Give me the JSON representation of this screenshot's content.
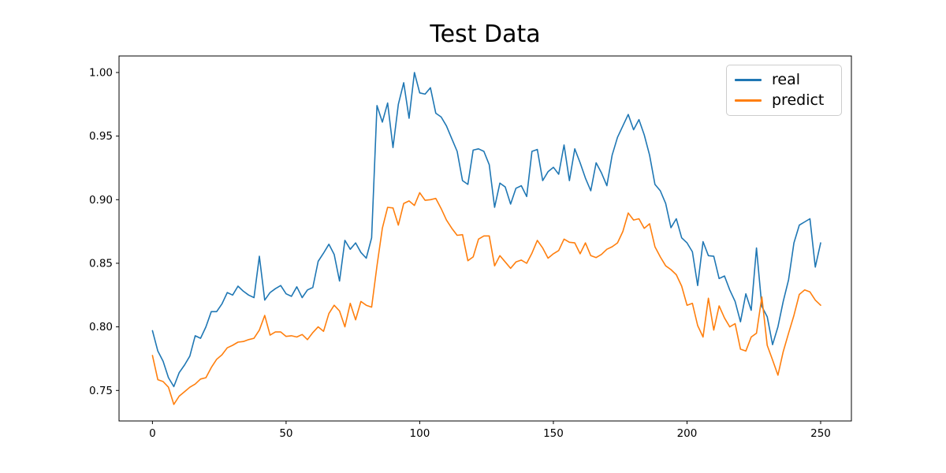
{
  "chart_data": {
    "type": "line",
    "title": "Test Data",
    "xlabel": "",
    "ylabel": "",
    "grid": false,
    "legend_position": "upper right",
    "legend_border_color": "#cccccc",
    "background_color": "#ffffff",
    "xlim": [
      -12.5,
      261.5
    ],
    "ylim": [
      0.726,
      1.013
    ],
    "xticks": [
      "0",
      "50",
      "100",
      "150",
      "200",
      "250"
    ],
    "yticks": [
      "0.75",
      "0.80",
      "0.85",
      "0.90",
      "0.95",
      "1.00"
    ],
    "x_step": 2,
    "series": [
      {
        "name": "real",
        "color": "#1f77b4",
        "values": [
          0.797,
          0.781,
          0.773,
          0.76,
          0.753,
          0.764,
          0.77,
          0.777,
          0.793,
          0.791,
          0.8,
          0.812,
          0.812,
          0.818,
          0.827,
          0.825,
          0.832,
          0.828,
          0.825,
          0.823,
          0.8555,
          0.821,
          0.827,
          0.83,
          0.8325,
          0.826,
          0.824,
          0.8315,
          0.823,
          0.829,
          0.831,
          0.8515,
          0.858,
          0.865,
          0.857,
          0.836,
          0.868,
          0.861,
          0.866,
          0.8585,
          0.854,
          0.87,
          0.974,
          0.961,
          0.976,
          0.941,
          0.975,
          0.992,
          0.964,
          1.0,
          0.984,
          0.983,
          0.988,
          0.968,
          0.965,
          0.958,
          0.948,
          0.938,
          0.915,
          0.912,
          0.939,
          0.94,
          0.938,
          0.9275,
          0.894,
          0.913,
          0.91,
          0.8965,
          0.909,
          0.911,
          0.9025,
          0.938,
          0.9395,
          0.915,
          0.922,
          0.9255,
          0.92,
          0.943,
          0.915,
          0.94,
          0.929,
          0.917,
          0.907,
          0.929,
          0.921,
          0.911,
          0.935,
          0.949,
          0.958,
          0.967,
          0.955,
          0.963,
          0.951,
          0.935,
          0.912,
          0.907,
          0.897,
          0.878,
          0.885,
          0.87,
          0.866,
          0.859,
          0.8325,
          0.867,
          0.856,
          0.8555,
          0.838,
          0.84,
          0.829,
          0.82,
          0.804,
          0.826,
          0.813,
          0.862,
          0.816,
          0.808,
          0.786,
          0.8,
          0.82,
          0.837,
          0.866,
          0.88,
          0.8825,
          0.885,
          0.847,
          0.866
        ]
      },
      {
        "name": "predict",
        "color": "#ff7f0e",
        "values": [
          0.7775,
          0.7585,
          0.757,
          0.7525,
          0.739,
          0.7455,
          0.749,
          0.7525,
          0.755,
          0.759,
          0.76,
          0.768,
          0.7745,
          0.778,
          0.7835,
          0.7855,
          0.788,
          0.7885,
          0.79,
          0.791,
          0.7975,
          0.809,
          0.7935,
          0.796,
          0.796,
          0.7925,
          0.793,
          0.792,
          0.794,
          0.79,
          0.7955,
          0.8,
          0.7965,
          0.8105,
          0.817,
          0.8125,
          0.8,
          0.8185,
          0.8055,
          0.82,
          0.817,
          0.8155,
          0.848,
          0.8775,
          0.894,
          0.8935,
          0.88,
          0.897,
          0.899,
          0.8955,
          0.9055,
          0.8995,
          0.9,
          0.901,
          0.893,
          0.884,
          0.8775,
          0.872,
          0.8725,
          0.852,
          0.855,
          0.869,
          0.8715,
          0.8715,
          0.848,
          0.856,
          0.851,
          0.846,
          0.851,
          0.8525,
          0.85,
          0.858,
          0.868,
          0.862,
          0.854,
          0.8575,
          0.86,
          0.869,
          0.8665,
          0.866,
          0.8575,
          0.866,
          0.856,
          0.8545,
          0.857,
          0.861,
          0.863,
          0.866,
          0.875,
          0.8895,
          0.884,
          0.885,
          0.8775,
          0.881,
          0.863,
          0.855,
          0.848,
          0.845,
          0.841,
          0.832,
          0.817,
          0.8185,
          0.801,
          0.792,
          0.8225,
          0.7975,
          0.8165,
          0.807,
          0.8,
          0.8025,
          0.7825,
          0.781,
          0.792,
          0.795,
          0.8235,
          0.7855,
          0.774,
          0.762,
          0.7805,
          0.795,
          0.809,
          0.8255,
          0.829,
          0.8275,
          0.821,
          0.817
        ]
      }
    ]
  }
}
